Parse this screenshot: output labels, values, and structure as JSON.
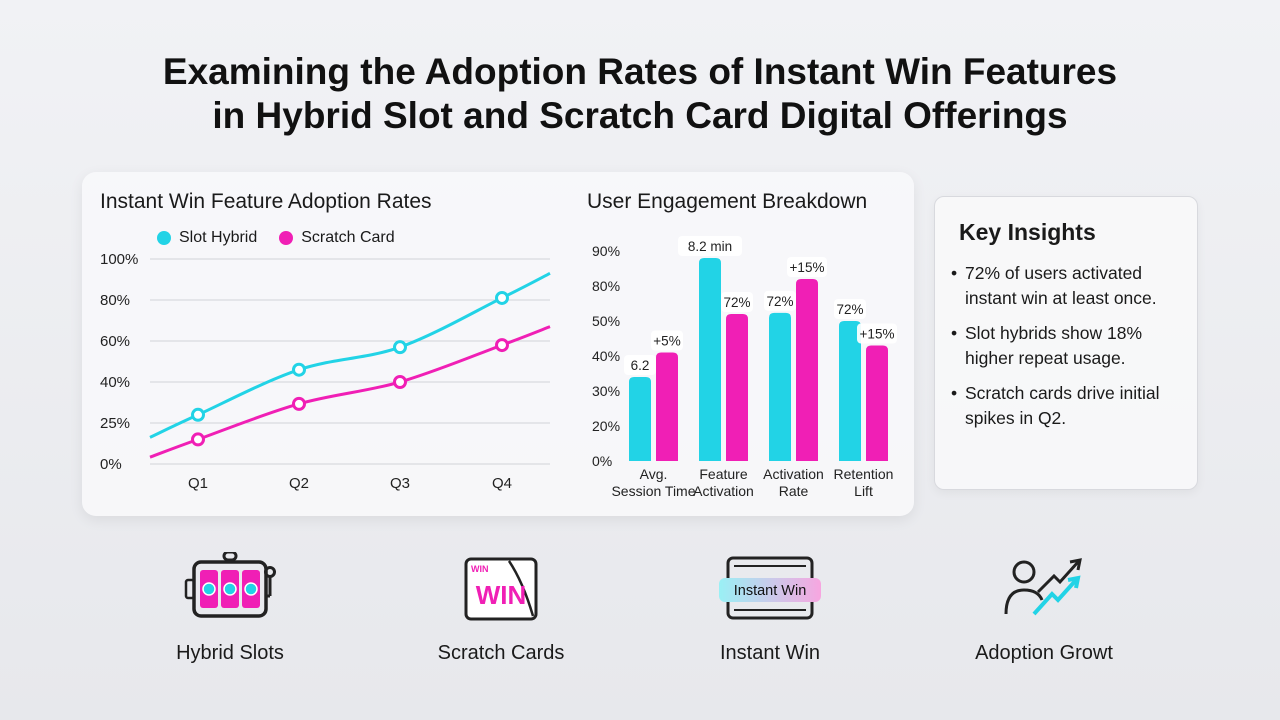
{
  "title_line1": "Examining the Adoption Rates of Instant Win Features",
  "title_line2": "in Hybrid Slot and Scratch Card Digital Offerings",
  "colors": {
    "cyan": "#22d3e6",
    "magenta": "#f01fb5"
  },
  "chart_data": [
    {
      "type": "line",
      "title": "Instant Win Feature Adoption Rates",
      "categories": [
        "Q1",
        "Q2",
        "Q3",
        "Q4"
      ],
      "y_ticks": [
        "0%",
        "25%",
        "40%",
        "60%",
        "80%",
        "100%"
      ],
      "grid": true,
      "legend": "top-left",
      "series": [
        {
          "name": "Slot Hybrid",
          "values": [
            28,
            46,
            57,
            81
          ],
          "color": "#22d3e6"
        },
        {
          "name": "Scratch Card",
          "values": [
            15,
            32,
            40,
            58
          ],
          "color": "#f01fb5"
        }
      ]
    },
    {
      "type": "bar",
      "title": "User Engagement Breakdown",
      "categories": [
        [
          "Avg.",
          "Session Time"
        ],
        [
          "Feature",
          "Activation"
        ],
        [
          "Activation",
          "Rate"
        ],
        [
          "Retention",
          "Lift"
        ]
      ],
      "y_ticks": [
        "0%",
        "20%",
        "30%",
        "40%",
        "50%",
        "80%",
        "90%"
      ],
      "series": [
        {
          "values": [
            34,
            88,
            57,
            50
          ],
          "color": "#22d3e6",
          "labels": [
            "6.2",
            "8.2 min",
            "72%",
            "72%"
          ]
        },
        {
          "values": [
            41,
            56,
            82,
            43
          ],
          "color": "#f01fb5",
          "labels": [
            "+5%",
            "72%",
            "+15%",
            "+15%"
          ]
        }
      ]
    }
  ],
  "insights": {
    "heading": "Key Insights",
    "items": [
      "72% of users activated instant win at least once.",
      "Slot hybrids show 18% higher repeat usage.",
      "Scratch cards drive initial spikes in Q2."
    ]
  },
  "icons": [
    {
      "label": "Hybrid Slots",
      "icon": "slot-machine-icon"
    },
    {
      "label": "Scratch Cards",
      "icon": "scratch-card-icon",
      "text_small": "WIN",
      "text_big": "WIN"
    },
    {
      "label": "Instant Win",
      "icon": "instant-win-icon",
      "text": "Instant Win"
    },
    {
      "label": "Adoption Growt",
      "icon": "adoption-growth-icon"
    }
  ]
}
